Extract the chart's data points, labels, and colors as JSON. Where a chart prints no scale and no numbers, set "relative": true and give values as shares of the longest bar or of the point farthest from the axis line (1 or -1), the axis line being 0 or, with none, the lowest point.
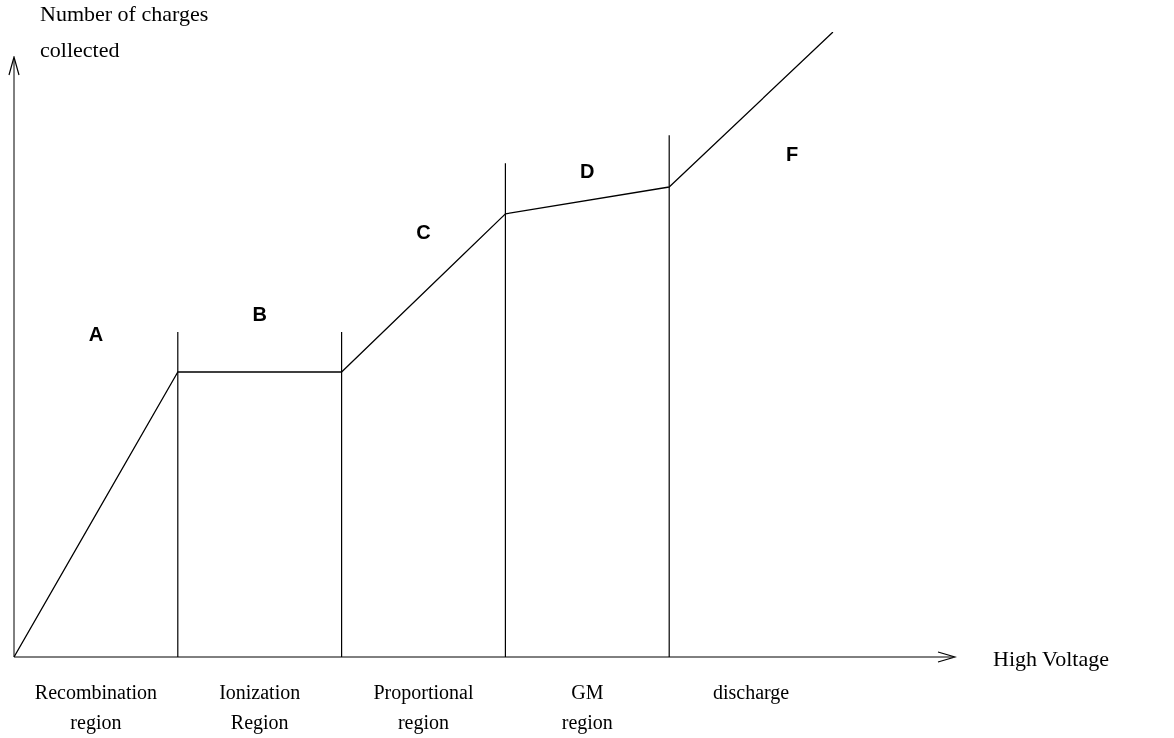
{
  "chart_data": {
    "type": "line",
    "relative": true,
    "ylabel": "Number of charges collected",
    "tick_labels": "x",
    "grid": "x",
    "legend": false,
    "marker": "none",
    "line_style": "solid",
    "categories": [
      null,
      "Recombination region",
      null,
      "Ionization Region",
      null,
      "Proportional region",
      null,
      "GM region",
      null,
      "discharge",
      null
    ],
    "series": [
      {
        "color": "#000000",
        "values": [
          0,
          null,
          0.456,
          null,
          0.456,
          null,
          0.709,
          null,
          0.752,
          null,
          1
        ]
      }
    ],
    "annotations": [
      "A",
      "B",
      "C",
      "D",
      "F",
      "High Voltage"
    ]
  }
}
